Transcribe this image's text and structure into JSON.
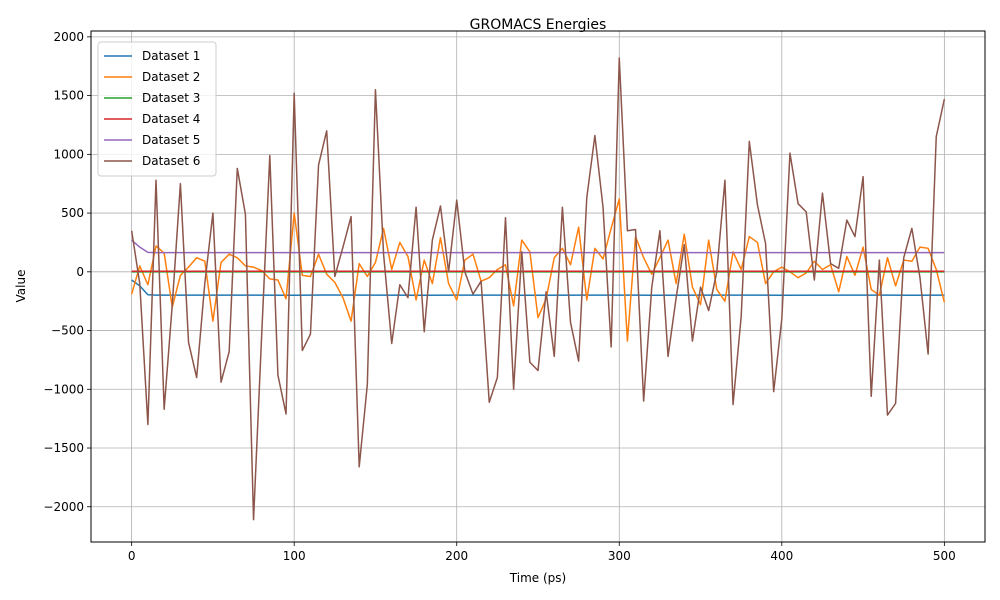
{
  "chart_data": {
    "type": "line",
    "title": "GROMACS Energies",
    "xlabel": "Time (ps)",
    "ylabel": "Value",
    "xlim": [
      -25,
      525
    ],
    "ylim": [
      -2300,
      2050
    ],
    "xticks": [
      0,
      100,
      200,
      300,
      400,
      500
    ],
    "yticks": [
      -2000,
      -1500,
      -1000,
      -500,
      0,
      500,
      1000,
      1500,
      2000
    ],
    "grid": true,
    "legend_position": "top-left",
    "series": [
      {
        "name": "Dataset 1",
        "color": "#1f77b4",
        "x": [
          0,
          5,
          10,
          15,
          20,
          60,
          100,
          120,
          140,
          180,
          200,
          240,
          280,
          320,
          360,
          400,
          440,
          480,
          500
        ],
        "y": [
          -70,
          -120,
          -195,
          -198,
          -198,
          -198,
          -199,
          -197,
          -198,
          -199,
          -198,
          -199,
          -198,
          -199,
          -198,
          -199,
          -198,
          -199,
          -198
        ]
      },
      {
        "name": "Dataset 2",
        "color": "#ff7f0e",
        "x": [
          0,
          5,
          10,
          15,
          20,
          25,
          30,
          35,
          40,
          45,
          50,
          55,
          60,
          65,
          70,
          75,
          80,
          85,
          90,
          95,
          100,
          105,
          110,
          115,
          120,
          125,
          130,
          135,
          140,
          145,
          150,
          155,
          160,
          165,
          170,
          175,
          180,
          185,
          190,
          195,
          200,
          205,
          210,
          215,
          220,
          225,
          230,
          235,
          240,
          245,
          250,
          255,
          260,
          265,
          270,
          275,
          280,
          285,
          290,
          295,
          300,
          305,
          310,
          315,
          320,
          325,
          330,
          335,
          340,
          345,
          350,
          355,
          360,
          365,
          370,
          375,
          380,
          385,
          390,
          395,
          400,
          405,
          410,
          415,
          420,
          425,
          430,
          435,
          440,
          445,
          450,
          455,
          460,
          465,
          470,
          475,
          480,
          485,
          490,
          495,
          500
        ],
        "y": [
          -190,
          50,
          -110,
          220,
          160,
          -300,
          -30,
          40,
          120,
          90,
          -420,
          80,
          150,
          120,
          50,
          40,
          10,
          -60,
          -70,
          -230,
          500,
          -30,
          -40,
          150,
          -20,
          -90,
          -220,
          -420,
          70,
          -40,
          80,
          370,
          20,
          250,
          130,
          -240,
          100,
          -100,
          290,
          -100,
          -240,
          100,
          150,
          -80,
          -50,
          20,
          60,
          -290,
          270,
          170,
          -390,
          -230,
          120,
          200,
          60,
          380,
          -240,
          200,
          110,
          370,
          620,
          -590,
          300,
          120,
          -20,
          120,
          270,
          -100,
          320,
          -130,
          -280,
          270,
          -150,
          -250,
          170,
          20,
          300,
          250,
          -100,
          0,
          40,
          0,
          -50,
          -10,
          90,
          20,
          60,
          -170,
          130,
          -30,
          210,
          -150,
          -200,
          120,
          -120,
          100,
          90,
          210,
          200,
          20,
          -260
        ]
      },
      {
        "name": "Dataset 3",
        "color": "#2ca02c",
        "x": [
          0,
          100,
          200,
          300,
          400,
          500
        ],
        "y": [
          0,
          0,
          0,
          0,
          0,
          0
        ]
      },
      {
        "name": "Dataset 4",
        "color": "#d62728",
        "x": [
          0,
          100,
          200,
          300,
          400,
          500
        ],
        "y": [
          5,
          5,
          5,
          5,
          5,
          5
        ]
      },
      {
        "name": "Dataset 5",
        "color": "#9467bd",
        "x": [
          0,
          5,
          10,
          15,
          30,
          100,
          200,
          300,
          400,
          500
        ],
        "y": [
          270,
          210,
          165,
          163,
          163,
          163,
          163,
          163,
          163,
          163
        ]
      },
      {
        "name": "Dataset 6",
        "color": "#8c564b",
        "x": [
          0,
          5,
          10,
          15,
          20,
          25,
          30,
          35,
          40,
          45,
          50,
          55,
          60,
          65,
          70,
          75,
          80,
          85,
          90,
          95,
          100,
          105,
          110,
          115,
          120,
          125,
          130,
          135,
          140,
          145,
          150,
          155,
          160,
          165,
          170,
          175,
          180,
          185,
          190,
          195,
          200,
          205,
          210,
          215,
          220,
          225,
          230,
          235,
          240,
          245,
          250,
          255,
          260,
          265,
          270,
          275,
          280,
          285,
          290,
          295,
          300,
          305,
          310,
          315,
          320,
          325,
          330,
          335,
          340,
          345,
          350,
          355,
          360,
          365,
          370,
          375,
          380,
          385,
          390,
          395,
          400,
          405,
          410,
          415,
          420,
          425,
          430,
          435,
          440,
          445,
          450,
          455,
          460,
          465,
          470,
          475,
          480,
          485,
          490,
          495,
          500
        ],
        "y": [
          350,
          -100,
          -1300,
          780,
          -1170,
          -280,
          750,
          -600,
          -900,
          -100,
          500,
          -940,
          -680,
          880,
          490,
          -2110,
          -540,
          990,
          -880,
          -1210,
          1520,
          -670,
          -530,
          910,
          1200,
          -40,
          210,
          470,
          -1660,
          -960,
          1550,
          150,
          -610,
          -110,
          -220,
          550,
          -510,
          270,
          560,
          0,
          610,
          0,
          -190,
          -80,
          -1110,
          -900,
          460,
          -1000,
          170,
          -770,
          -840,
          -170,
          -720,
          550,
          -430,
          -760,
          630,
          1160,
          550,
          -640,
          1820,
          350,
          360,
          -1100,
          -130,
          350,
          -720,
          -220,
          230,
          -590,
          -130,
          -330,
          0,
          780,
          -1130,
          -380,
          1110,
          570,
          240,
          -1020,
          -400,
          1010,
          580,
          510,
          -70,
          670,
          70,
          30,
          440,
          300,
          810,
          -1060,
          100,
          -1220,
          -1120,
          120,
          370,
          -50,
          -700,
          1150,
          1470
        ]
      }
    ]
  }
}
